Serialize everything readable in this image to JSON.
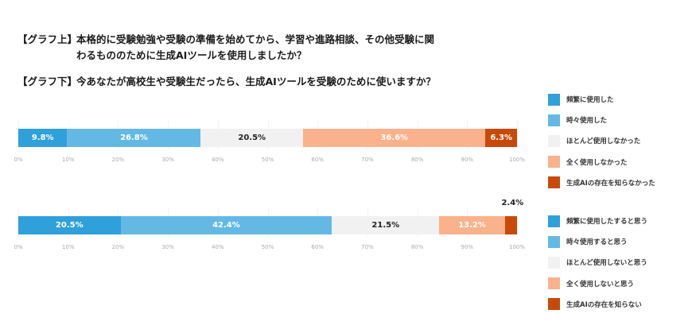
{
  "questions": {
    "top": {
      "tag": "【グラフ上】",
      "line1": "本格的に受験勉強や受験の準備を始めてから、学習や進路相談、その他受験に関",
      "line2": "わるもののために生成AIツールを使用しましたか？"
    },
    "bottom": {
      "tag": "【グラフ下】",
      "line1": "今あなたが高校生や受験生だったら、生成AIツールを受験のために使いますか？"
    }
  },
  "colors": {
    "frequent": "#2fa0d9",
    "sometimes": "#64b9e4",
    "rarely": "#f1f1f1",
    "never": "#f9b28b",
    "unaware": "#c74a0a"
  },
  "chart_data": [
    {
      "type": "bar",
      "orientation": "horizontal-stacked-100",
      "title": "【グラフ上】本格的に受験勉強や受験の準備を始めてから、学習や進路相談、その他受験に関わるもののために生成AIツールを使用しましたか？",
      "categories": [
        "頻繁に使用した",
        "時々使用した",
        "ほとんど使用しなかった",
        "全く使用しなかった",
        "生成AIの存在を知らなかった"
      ],
      "values": [
        9.8,
        26.8,
        20.5,
        36.6,
        6.3
      ],
      "labels": [
        "9.8%",
        "26.8%",
        "20.5%",
        "36.6%",
        "6.3%"
      ],
      "xlabel": "",
      "ylabel": "",
      "xlim": [
        0,
        100
      ],
      "xticks": [
        "0%",
        "10%",
        "20%",
        "30%",
        "40%",
        "50%",
        "60%",
        "70%",
        "80%",
        "90%",
        "100%"
      ],
      "grid": true,
      "legend_position": "right"
    },
    {
      "type": "bar",
      "orientation": "horizontal-stacked-100",
      "title": "【グラフ下】今あなたが高校生や受験生だったら、生成AIツールを受験のために使いますか？",
      "categories": [
        "頻繁に使用したすると思う",
        "時々使用すると思う",
        "ほとんど使用しないと思う",
        "全く使用しないと思う",
        "生成AIの存在を知らない"
      ],
      "values": [
        20.5,
        42.4,
        21.5,
        13.2,
        2.4
      ],
      "labels": [
        "20.5%",
        "42.4%",
        "21.5%",
        "13.2%",
        "2.4%"
      ],
      "xlabel": "",
      "ylabel": "",
      "xlim": [
        0,
        100
      ],
      "xticks": [
        "0%",
        "10%",
        "20%",
        "30%",
        "40%",
        "50%",
        "60%",
        "70%",
        "80%",
        "90%",
        "100%"
      ],
      "grid": true,
      "legend_position": "right"
    }
  ],
  "legend_top": [
    {
      "label": "頻繁に使用した",
      "color": "#2fa0d9"
    },
    {
      "label": "時々使用した",
      "color": "#64b9e4"
    },
    {
      "label": "ほとんど使用しなかった",
      "color": "#f1f1f1"
    },
    {
      "label": "全く使用しなかった",
      "color": "#f9b28b"
    },
    {
      "label": "生成AIの存在を知らなかった",
      "color": "#c74a0a"
    }
  ],
  "legend_bottom": [
    {
      "label": "頻繁に使用したすると思う",
      "color": "#2fa0d9"
    },
    {
      "label": "時々使用すると思う",
      "color": "#64b9e4"
    },
    {
      "label": "ほとんど使用しないと思う",
      "color": "#f1f1f1"
    },
    {
      "label": "全く使用しないと思う",
      "color": "#f9b28b"
    },
    {
      "label": "生成AIの存在を知らない",
      "color": "#c74a0a"
    }
  ]
}
